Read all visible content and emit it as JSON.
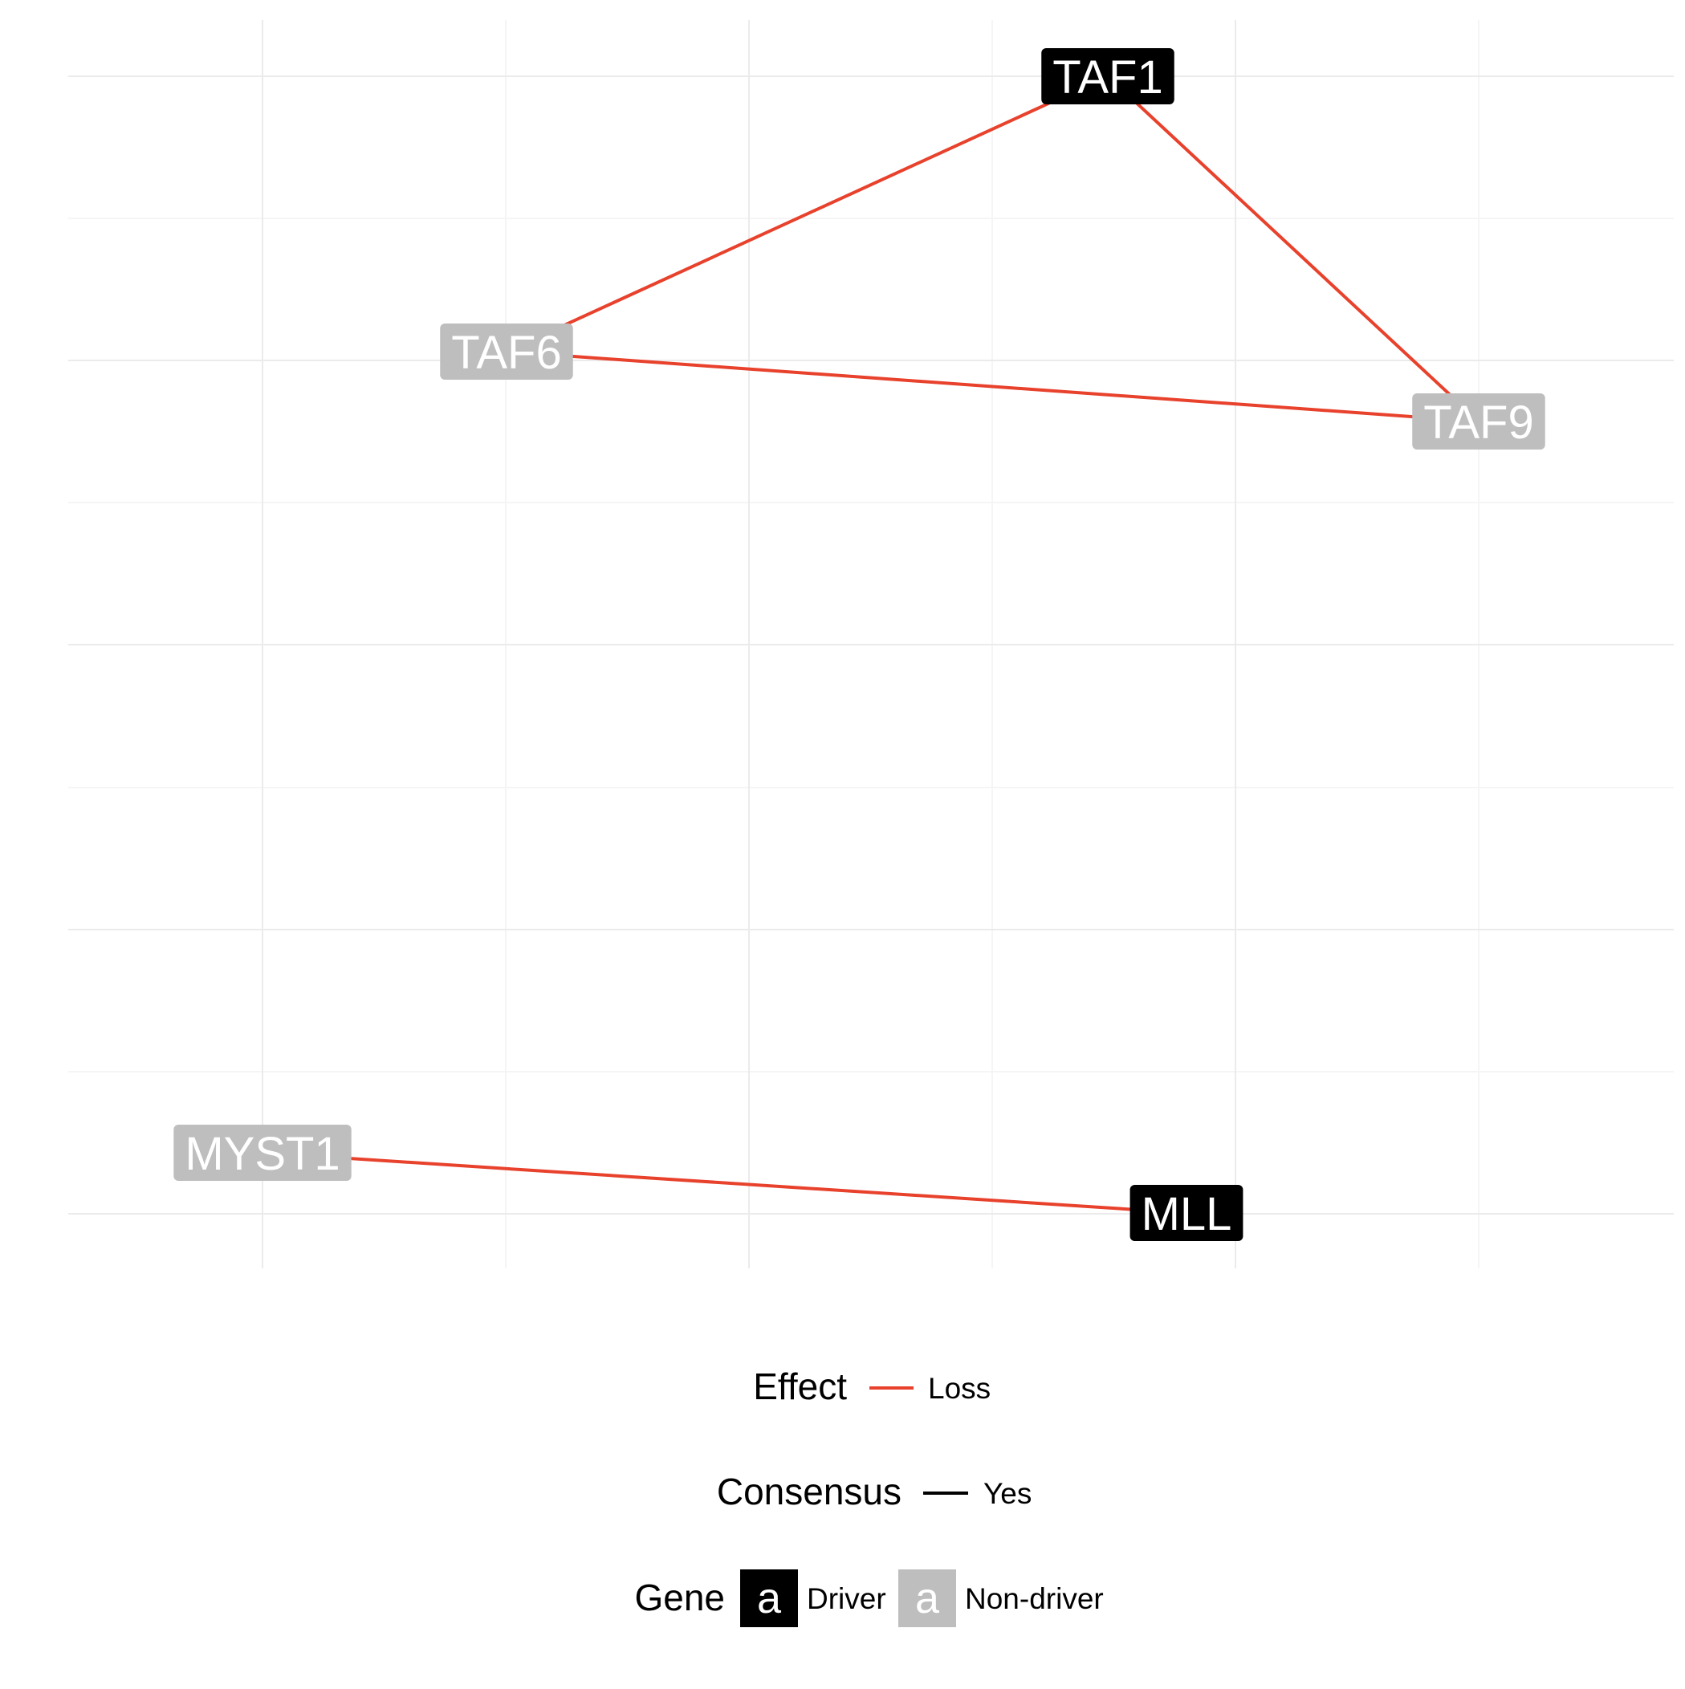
{
  "colors": {
    "driver": "#000000",
    "non_driver": "#bebebe",
    "loss": "#e8412c",
    "consensus": "#000000",
    "grid_major": "#ebebeb",
    "grid_minor": "#f5f5f5"
  },
  "network": {
    "nodes": [
      {
        "id": "TAF1",
        "label": "TAF1",
        "type": "driver"
      },
      {
        "id": "TAF6",
        "label": "TAF6",
        "type": "non-driver"
      },
      {
        "id": "TAF9",
        "label": "TAF9",
        "type": "non-driver"
      },
      {
        "id": "MYST1",
        "label": "MYST1",
        "type": "non-driver"
      },
      {
        "id": "MLL",
        "label": "MLL",
        "type": "driver"
      }
    ],
    "edges": [
      {
        "from": "TAF6",
        "to": "TAF1",
        "effect": "Loss",
        "consensus": "Yes"
      },
      {
        "from": "TAF1",
        "to": "TAF9",
        "effect": "Loss",
        "consensus": "Yes"
      },
      {
        "from": "TAF6",
        "to": "TAF9",
        "effect": "Loss",
        "consensus": "Yes"
      },
      {
        "from": "MYST1",
        "to": "MLL",
        "effect": "Loss",
        "consensus": "Yes"
      }
    ]
  },
  "legend": {
    "effect": {
      "title": "Effect",
      "items": [
        {
          "label": "Loss"
        }
      ]
    },
    "consensus": {
      "title": "Consensus",
      "items": [
        {
          "label": "Yes"
        }
      ]
    },
    "gene": {
      "title": "Gene",
      "key_glyph": "a",
      "items": [
        {
          "label": "Driver"
        },
        {
          "label": "Non-driver"
        }
      ]
    }
  }
}
